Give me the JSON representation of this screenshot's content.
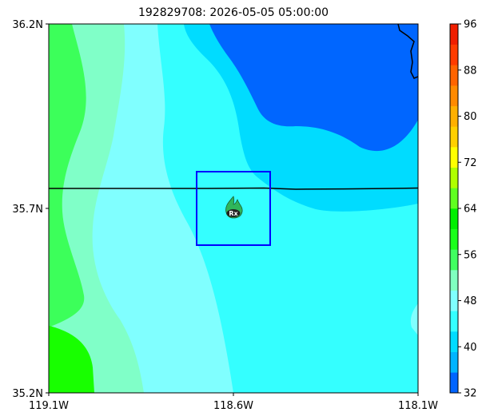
{
  "map": {
    "title": "192829708: 2026-05-05 05:00:00",
    "lat_labels": [
      "36.2N",
      "35.7N",
      "35.2N"
    ],
    "lon_labels": [
      "119.1W",
      "118.6W",
      "118.1W"
    ],
    "marker_label": "Rx",
    "marker_icon": "fire-icon",
    "box_color": "#0000ff",
    "boundary_color": "#000000"
  },
  "colorbar": {
    "ticks": [
      "32",
      "40",
      "48",
      "56",
      "64",
      "72",
      "80",
      "88",
      "96"
    ],
    "colors": [
      "#0064ff",
      "#00b4ff",
      "#00dcff",
      "#34ffff",
      "#7fffff",
      "#80ffc0",
      "#40ff60",
      "#1aff1a",
      "#00ef00",
      "#60ff20",
      "#b0ff00",
      "#ffff00",
      "#ffd000",
      "#ffb000",
      "#ff8a00",
      "#ff6400",
      "#ff3c00",
      "#f01e00"
    ]
  },
  "field_colors": {
    "deep_blue": "#0066ff",
    "light_blue": "#00dcff",
    "cyan": "#34ffff",
    "pale_cyan": "#80ffff",
    "aquamarine": "#80ffc8",
    "green": "#3cff5a",
    "bright_green": "#18ff00"
  }
}
